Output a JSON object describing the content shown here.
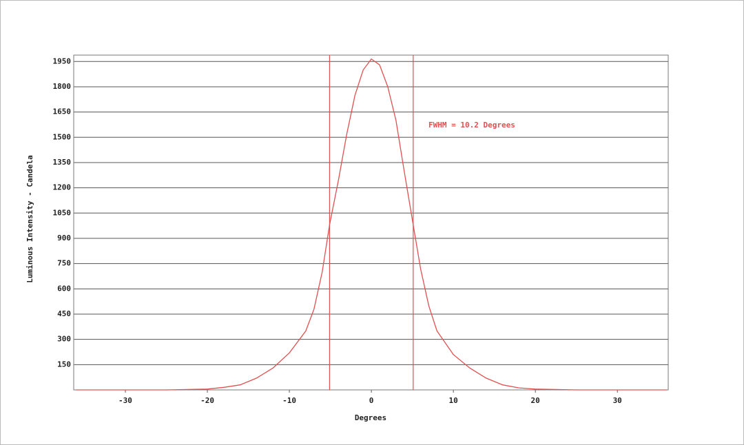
{
  "chart_data": {
    "type": "line",
    "xlabel": "Degrees",
    "ylabel": "Luminous Intensity - Candela",
    "annotation": "FWHM = 10.2 Degrees",
    "fwhm_lines": [
      -5.1,
      5.1
    ],
    "color": "#e05050",
    "grid": true,
    "xlim": [
      -36.3,
      36.2
    ],
    "ylim": [
      0,
      1988
    ],
    "xticks": [
      -30,
      -20,
      -10,
      0,
      10,
      20,
      30
    ],
    "yticks": [
      150,
      300,
      450,
      600,
      750,
      900,
      1050,
      1200,
      1350,
      1500,
      1650,
      1800,
      1950
    ],
    "x": [
      -36,
      -25,
      -20,
      -18,
      -16,
      -14,
      -12,
      -10,
      -8,
      -7,
      -6,
      -5.1,
      -4,
      -3,
      -2,
      -1,
      0,
      1,
      2,
      3,
      4,
      5.1,
      6,
      7,
      8,
      10,
      12,
      14,
      16,
      18,
      20,
      25,
      36
    ],
    "values": [
      0,
      0,
      5,
      15,
      30,
      70,
      130,
      220,
      350,
      480,
      700,
      980,
      1250,
      1520,
      1750,
      1900,
      1965,
      1930,
      1800,
      1600,
      1300,
      980,
      720,
      500,
      350,
      210,
      130,
      70,
      30,
      12,
      5,
      0,
      0
    ]
  }
}
